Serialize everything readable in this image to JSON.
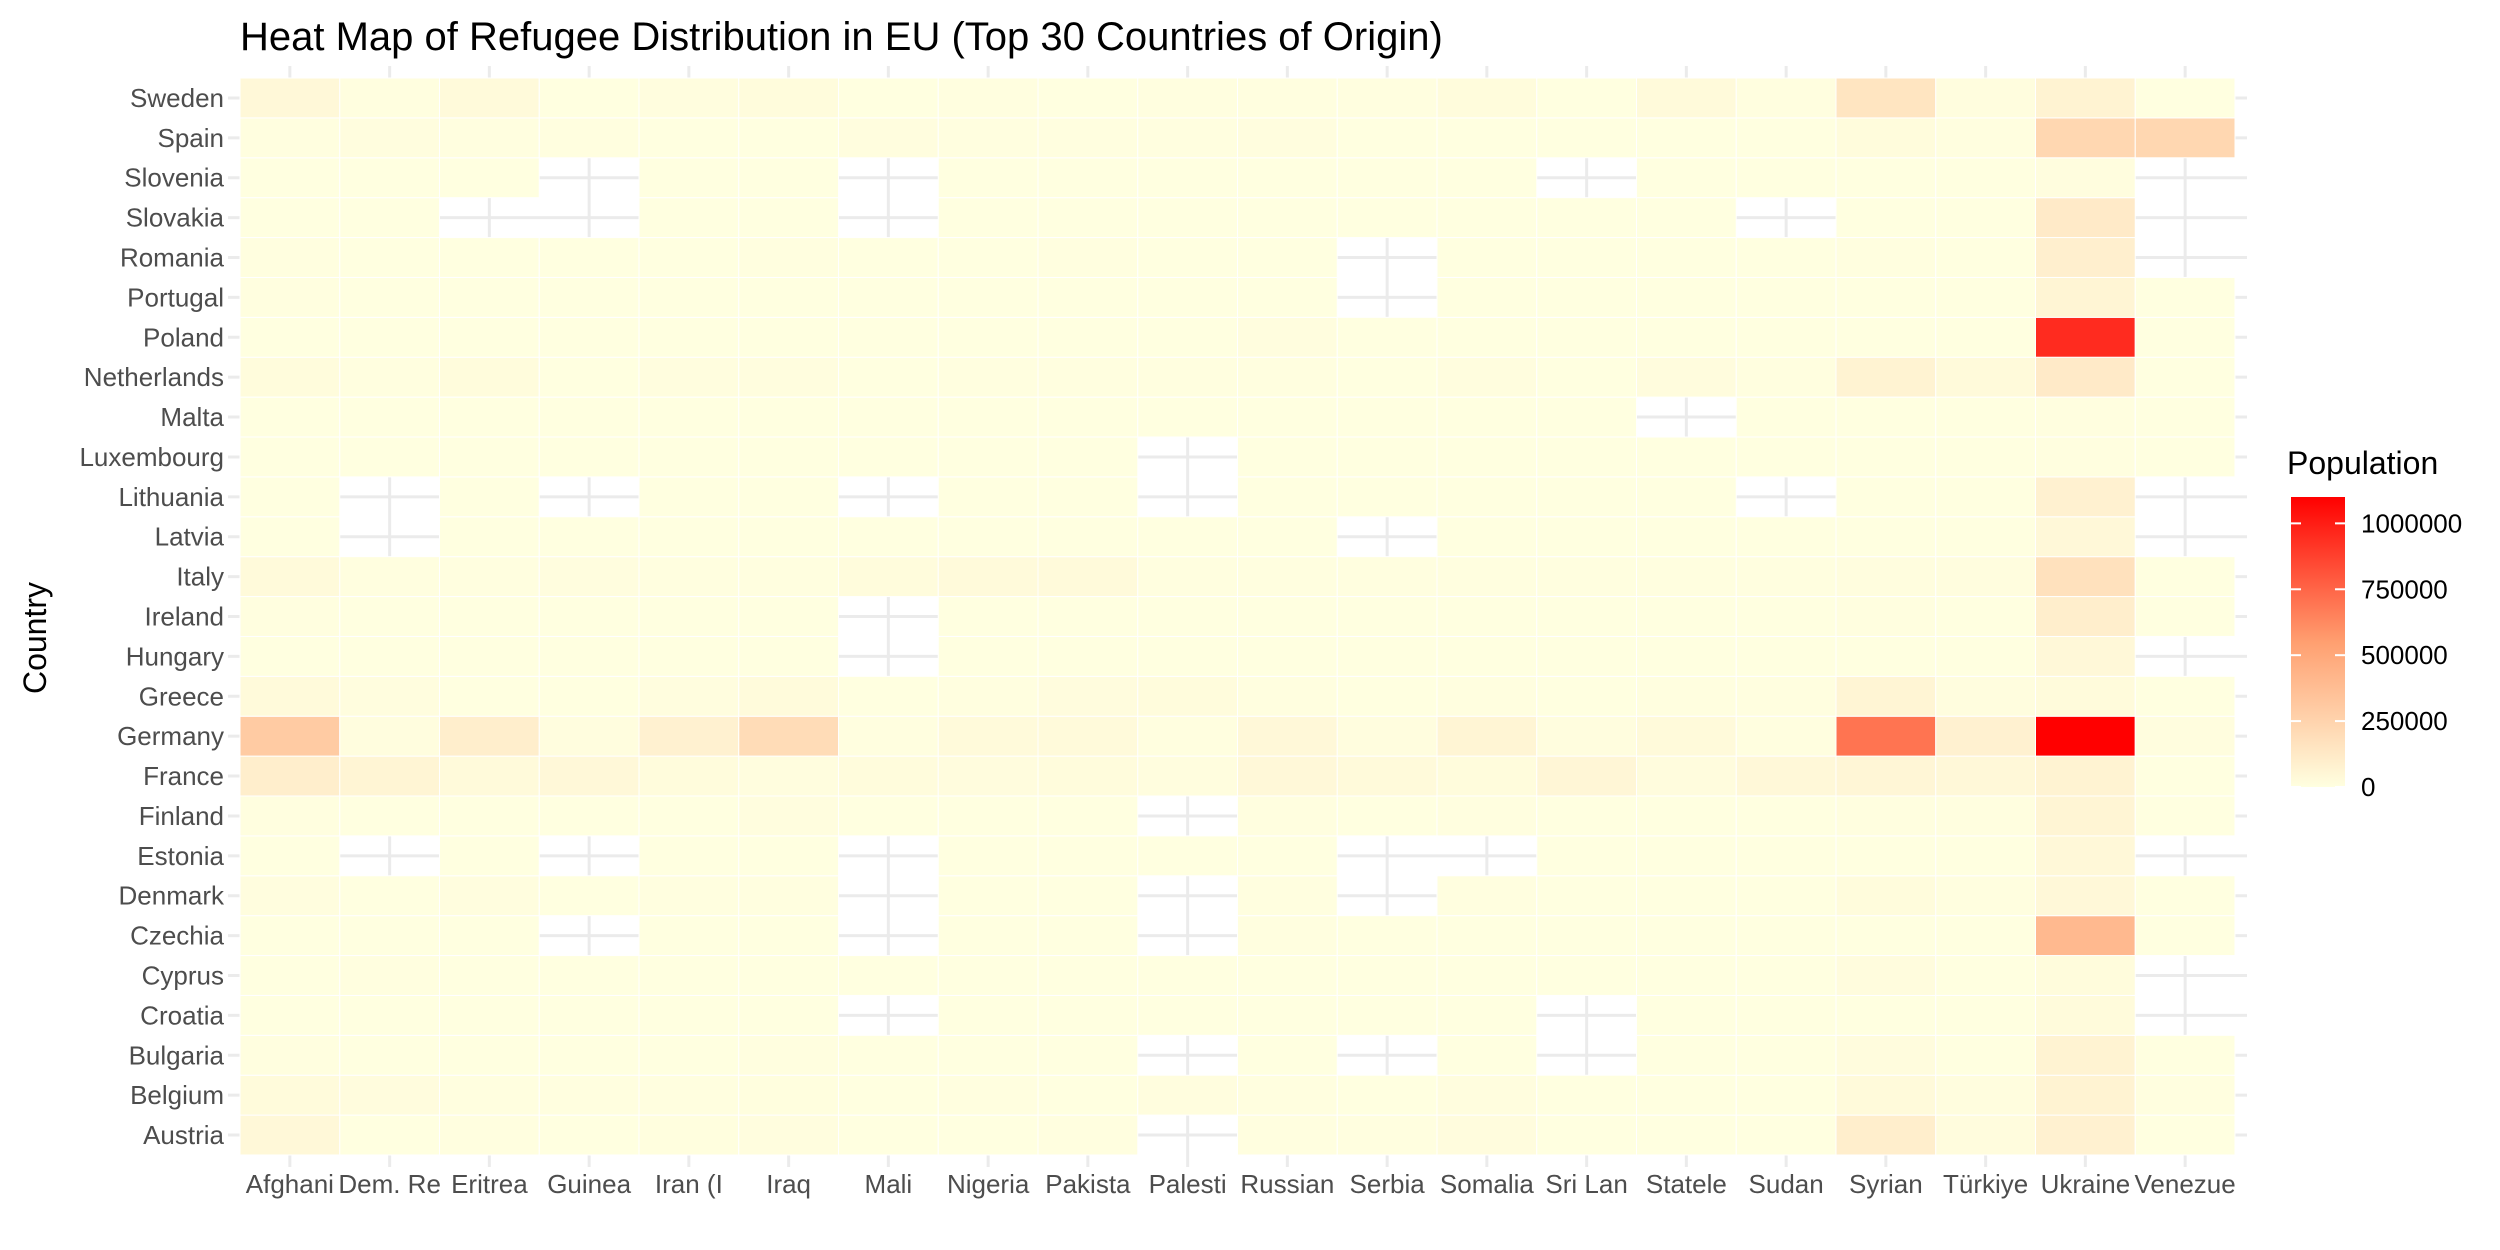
{
  "chart_data": {
    "type": "heatmap",
    "title": "Heat Map of Refugee Distribution in EU (Top 30 Countries of Origin)",
    "xlabel": "",
    "ylabel": "Country",
    "x_categories": [
      "Afghani",
      "Dem. Re",
      "Eritrea",
      "Guinea",
      "Iran (I",
      "Iraq",
      "Mali",
      "Nigeria",
      "Pakista",
      "Palesti",
      "Russian",
      "Serbia",
      "Somalia",
      "Sri Lan",
      "Statele",
      "Sudan",
      "Syrian",
      "Türkiye",
      "Ukraine",
      "Venezue"
    ],
    "y_categories": [
      "Austria",
      "Belgium",
      "Bulgaria",
      "Croatia",
      "Cyprus",
      "Czechia",
      "Denmark",
      "Estonia",
      "Finland",
      "France",
      "Germany",
      "Greece",
      "Hungary",
      "Ireland",
      "Italy",
      "Latvia",
      "Lithuania",
      "Luxembourg",
      "Malta",
      "Netherlands",
      "Poland",
      "Portugal",
      "Romania",
      "Slovakia",
      "Slovenia",
      "Spain",
      "Sweden"
    ],
    "values": [
      [
        40000,
        1000,
        3000,
        500,
        8000,
        10000,
        200,
        2000,
        3000,
        null,
        5000,
        5000,
        15000,
        1000,
        1000,
        2000,
        100000,
        15000,
        80000,
        1000
      ],
      [
        25000,
        15000,
        5000,
        5000,
        7000,
        8000,
        1000,
        3000,
        2000,
        10000,
        6000,
        2000,
        10000,
        1000,
        2000,
        2000,
        30000,
        10000,
        70000,
        3000
      ],
      [
        3000,
        100,
        500,
        50,
        1000,
        3000,
        10,
        200,
        500,
        null,
        1000,
        null,
        200,
        null,
        1000,
        50,
        15000,
        1000,
        70000,
        100
      ],
      [
        500,
        10,
        50,
        10,
        300,
        800,
        null,
        100,
        200,
        300,
        1000,
        200,
        100,
        null,
        100,
        10,
        500,
        500,
        25000,
        null
      ],
      [
        1000,
        3000,
        1000,
        500,
        1000,
        2000,
        100,
        1000,
        2000,
        1000,
        1000,
        200,
        2000,
        500,
        500,
        500,
        15000,
        2000,
        20000,
        null
      ],
      [
        1000,
        100,
        100,
        null,
        1000,
        1000,
        null,
        500,
        500,
        null,
        3000,
        500,
        100,
        200,
        200,
        100,
        2000,
        2000,
        400000,
        100
      ],
      [
        10000,
        500,
        10000,
        500,
        3000,
        5000,
        null,
        1000,
        2000,
        null,
        5000,
        null,
        5000,
        2000,
        2000,
        1000,
        20000,
        5000,
        40000,
        100
      ],
      [
        500,
        null,
        50,
        null,
        200,
        200,
        null,
        100,
        100,
        100,
        2000,
        null,
        null,
        50,
        50,
        50,
        300,
        500,
        40000,
        null
      ],
      [
        3000,
        500,
        1000,
        100,
        2000,
        10000,
        100,
        1000,
        1000,
        null,
        5000,
        200,
        5000,
        500,
        1000,
        500,
        5000,
        3000,
        60000,
        200
      ],
      [
        100000,
        60000,
        30000,
        40000,
        20000,
        10000,
        20000,
        15000,
        20000,
        10000,
        40000,
        30000,
        20000,
        50000,
        15000,
        40000,
        50000,
        40000,
        70000,
        1000
      ],
      [
        300000,
        10000,
        100000,
        10000,
        80000,
        200000,
        5000,
        30000,
        30000,
        5000,
        40000,
        10000,
        60000,
        10000,
        30000,
        5000,
        700000,
        80000,
        1100000,
        10000
      ],
      [
        30000,
        10000,
        2000,
        2000,
        10000,
        25000,
        1000,
        5000,
        15000,
        20000,
        5000,
        1000,
        5000,
        1000,
        3000,
        3000,
        60000,
        10000,
        25000,
        1000
      ],
      [
        500,
        100,
        100,
        100,
        300,
        500,
        null,
        100,
        100,
        100,
        1000,
        100,
        100,
        100,
        100,
        100,
        2000,
        500,
        40000,
        null
      ],
      [
        3000,
        1000,
        500,
        1000,
        2000,
        2000,
        null,
        2000,
        2000,
        1000,
        2000,
        200,
        1000,
        200,
        500,
        500,
        5000,
        1000,
        100000,
        200
      ],
      [
        30000,
        3000,
        5000,
        10000,
        5000,
        5000,
        20000,
        30000,
        30000,
        3000,
        5000,
        5000,
        5000,
        5000,
        5000,
        5000,
        10000,
        10000,
        170000,
        500
      ],
      [
        200,
        null,
        50,
        10,
        100,
        500,
        10,
        100,
        100,
        100,
        1000,
        null,
        50,
        10,
        50,
        10,
        500,
        500,
        40000,
        null
      ],
      [
        300,
        null,
        50,
        null,
        100,
        500,
        null,
        100,
        100,
        null,
        2000,
        50,
        50,
        10,
        50,
        null,
        500,
        500,
        80000,
        null
      ],
      [
        2000,
        500,
        1000,
        200,
        500,
        2000,
        100,
        500,
        500,
        null,
        500,
        500,
        1000,
        100,
        500,
        100,
        2000,
        500,
        5000,
        100
      ],
      [
        500,
        100,
        500,
        100,
        200,
        500,
        100,
        200,
        500,
        500,
        500,
        100,
        1000,
        100,
        null,
        200,
        2000,
        500,
        3000,
        100
      ],
      [
        20000,
        5000,
        20000,
        2000,
        10000,
        10000,
        1000,
        3000,
        3000,
        5000,
        3000,
        1000,
        10000,
        1000,
        15000,
        3000,
        70000,
        30000,
        120000,
        1000
      ],
      [
        1000,
        500,
        100,
        200,
        1000,
        1000,
        100,
        500,
        1000,
        1000,
        10000,
        500,
        500,
        500,
        500,
        100,
        2000,
        2000,
        950000,
        200
      ],
      [
        3000,
        500,
        500,
        1000,
        1000,
        1000,
        100,
        1000,
        1000,
        1000,
        1000,
        null,
        500,
        200,
        200,
        200,
        2000,
        1000,
        60000,
        1000
      ],
      [
        3000,
        100,
        100,
        100,
        2000,
        5000,
        50,
        1000,
        3000,
        2000,
        1000,
        null,
        200,
        500,
        200,
        100,
        5000,
        2000,
        90000,
        null
      ],
      [
        200,
        50,
        null,
        null,
        100,
        300,
        null,
        100,
        100,
        100,
        500,
        100,
        50,
        50,
        50,
        null,
        200,
        200,
        120000,
        null
      ],
      [
        1000,
        100,
        100,
        null,
        300,
        500,
        null,
        100,
        200,
        100,
        500,
        200,
        100,
        null,
        100,
        100,
        1000,
        1000,
        10000,
        null
      ],
      [
        5000,
        10000,
        3000,
        5000,
        2000,
        2000,
        10000,
        5000,
        5000,
        5000,
        10000,
        1000,
        2000,
        500,
        2000,
        2000,
        20000,
        3000,
        230000,
        230000
      ],
      [
        40000,
        5000,
        30000,
        2000,
        10000,
        20000,
        1000,
        3000,
        2000,
        5000,
        5000,
        5000,
        20000,
        2000,
        30000,
        5000,
        150000,
        10000,
        70000,
        1000
      ]
    ],
    "color_scale": {
      "low": "#FFFFE0",
      "high": "#FF0000",
      "min": 0,
      "max": 1100000
    },
    "grid": true,
    "legend": {
      "title": "Population",
      "position": "right",
      "ticks": [
        0,
        250000,
        500000,
        750000,
        1000000
      ]
    }
  }
}
